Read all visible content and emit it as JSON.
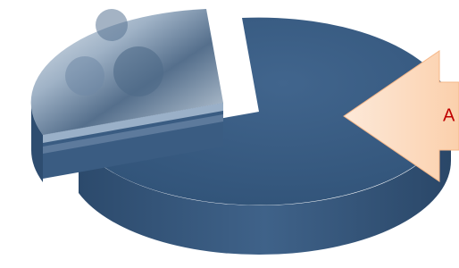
{
  "arrow": {
    "label": "A"
  }
}
